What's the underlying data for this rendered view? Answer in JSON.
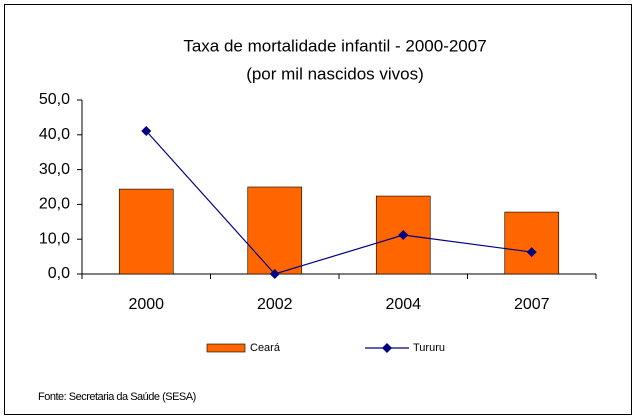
{
  "chart_data": {
    "type": "combo",
    "title": "Taxa de mortalidade infantil - 2000-2007",
    "subtitle": "(por mil nascidos vivos)",
    "categories": [
      "2000",
      "2002",
      "2004",
      "2007"
    ],
    "series": [
      {
        "name": "Ceará",
        "type": "bar",
        "color": "#ff6600",
        "values": [
          24.4,
          25.0,
          22.4,
          17.8
        ]
      },
      {
        "name": "Tururu",
        "type": "line",
        "color": "#000080",
        "values": [
          41.1,
          0.0,
          11.2,
          6.3
        ]
      }
    ],
    "ylim": [
      0,
      50
    ],
    "yticks": [
      {
        "value": 0,
        "label": "0,0"
      },
      {
        "value": 10,
        "label": "10,0"
      },
      {
        "value": 20,
        "label": "20,0"
      },
      {
        "value": 30,
        "label": "30,0"
      },
      {
        "value": 40,
        "label": "40,0"
      },
      {
        "value": 50,
        "label": "50,0"
      }
    ],
    "legend": "bottom",
    "source": "Fonte: Secretaria da Saúde (SESA)"
  }
}
